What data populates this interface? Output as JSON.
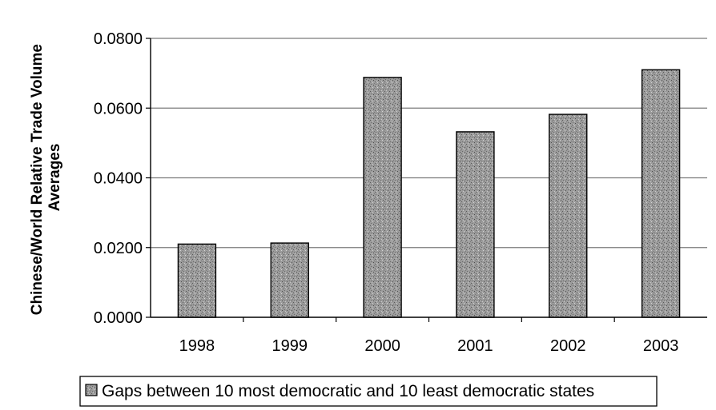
{
  "chart_data": {
    "type": "bar",
    "categories": [
      "1998",
      "1999",
      "2000",
      "2001",
      "2002",
      "2003"
    ],
    "series": [
      {
        "name": "Gaps between 10 most democratic and 10 least democratic states",
        "values": [
          0.021,
          0.0213,
          0.0688,
          0.0532,
          0.0582,
          0.071
        ],
        "color": "#9a9a9a"
      }
    ],
    "title": "",
    "xlabel": "",
    "ylabel": "Chinese/World Relative Trade Volume Averages",
    "ylabel_lines": [
      "Chinese/World Relative Trade Volume",
      "Averages"
    ],
    "ylim": [
      0,
      0.08
    ],
    "yticks": [
      "0.0000",
      "0.0200",
      "0.0400",
      "0.0600",
      "0.0800"
    ],
    "grid": true,
    "legend_position": "bottom"
  }
}
